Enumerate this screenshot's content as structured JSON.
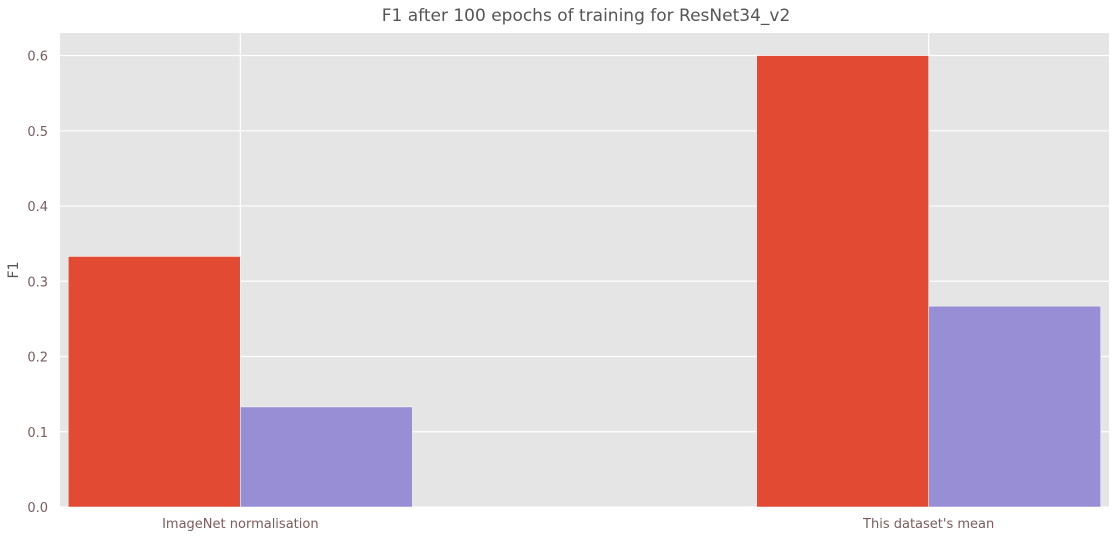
{
  "chart_data": {
    "type": "bar",
    "title": "F1 after 100 epochs of training for ResNet34_v2",
    "xlabel": "",
    "ylabel": "F1",
    "categories": [
      "ImageNet normalisation",
      "This dataset's mean"
    ],
    "series": [
      {
        "values": [
          0.333,
          0.6
        ],
        "color": "#E24A33"
      },
      {
        "values": [
          0.133,
          0.267
        ],
        "color": "#988ED5"
      }
    ],
    "ylim": [
      0,
      0.63
    ],
    "yticks": [
      0.0,
      0.1,
      0.2,
      0.3,
      0.4,
      0.5,
      0.6
    ],
    "ytick_labels": [
      "0.0",
      "0.1",
      "0.2",
      "0.3",
      "0.4",
      "0.5",
      "0.6"
    ],
    "grid": true,
    "style": "ggplot",
    "background_color": "#E5E5E5",
    "grid_color": "#FFFFFF",
    "text_color": "#555555",
    "tick_label_color": "#7a5c5c"
  }
}
